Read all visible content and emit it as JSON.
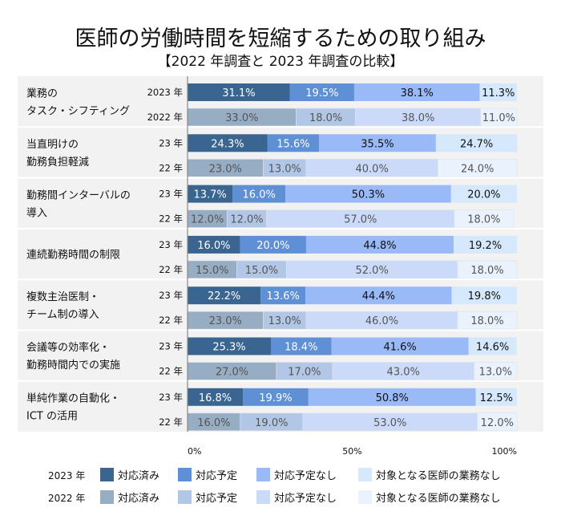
{
  "title": "医師の労働時間を短縮するための取り組み",
  "subtitle": "【2022 年調査と 2023 年調査の比較】",
  "colors": {
    "2023": [
      "#3a6590",
      "#5f8fd4",
      "#9ab9f7",
      "#d6e8fb"
    ],
    "2022": [
      "#97adc3",
      "#b2c6e6",
      "#cbdaf8",
      "#eaf3fd"
    ]
  },
  "chart_data": {
    "type": "bar",
    "orientation": "horizontal",
    "stacked": true,
    "xlim": [
      0,
      100
    ],
    "xticks": [
      "0%",
      "50%",
      "100%"
    ],
    "legend": {
      "placement": "bottom",
      "rows": [
        {
          "label": "2023 年",
          "items": [
            "対応済み",
            "対応予定",
            "対応予定なし",
            "対象となる医師の業務なし"
          ]
        },
        {
          "label": "2022 年",
          "items": [
            "対応済み",
            "対応予定",
            "対応予定なし",
            "対象となる医師の業務なし"
          ]
        }
      ]
    },
    "categories": [
      {
        "label": [
          "業務の",
          "タスク・シフティング"
        ],
        "y23": "2023 年",
        "y22": "2022 年",
        "v2023": [
          31.1,
          19.5,
          38.1,
          11.3
        ],
        "v2022": [
          33.0,
          18.0,
          38.0,
          11.0
        ]
      },
      {
        "label": [
          "当直明けの",
          "勤務負担軽減"
        ],
        "y23": "23 年",
        "y22": "22 年",
        "v2023": [
          24.3,
          15.6,
          35.5,
          24.7
        ],
        "v2022": [
          23.0,
          13.0,
          40.0,
          24.0
        ]
      },
      {
        "label": [
          "勤務間インターバルの",
          "導入"
        ],
        "y23": "23 年",
        "y22": "22 年",
        "v2023": [
          13.7,
          16.0,
          50.3,
          20.0
        ],
        "v2022": [
          12.0,
          12.0,
          57.0,
          18.0
        ]
      },
      {
        "label": [
          "連続勤務時間の制限"
        ],
        "y23": "23 年",
        "y22": "22 年",
        "v2023": [
          16.0,
          20.0,
          44.8,
          19.2
        ],
        "v2022": [
          15.0,
          15.0,
          52.0,
          18.0
        ]
      },
      {
        "label": [
          "複数主治医制・",
          "チーム制の導入"
        ],
        "y23": "23 年",
        "y22": "22 年",
        "v2023": [
          22.2,
          13.6,
          44.4,
          19.8
        ],
        "v2022": [
          23.0,
          13.0,
          46.0,
          18.0
        ]
      },
      {
        "label": [
          "会議等の効率化・",
          "勤務時間内での実施"
        ],
        "y23": "23 年",
        "y22": "22 年",
        "v2023": [
          25.3,
          18.4,
          41.6,
          14.6
        ],
        "v2022": [
          27.0,
          17.0,
          43.0,
          13.0
        ]
      },
      {
        "label": [
          "単純作業の自動化・",
          "ICT の活用"
        ],
        "y23": "23 年",
        "y22": "22 年",
        "v2023": [
          16.8,
          19.9,
          50.8,
          12.5
        ],
        "v2022": [
          16.0,
          19.0,
          53.0,
          12.0
        ]
      }
    ]
  }
}
